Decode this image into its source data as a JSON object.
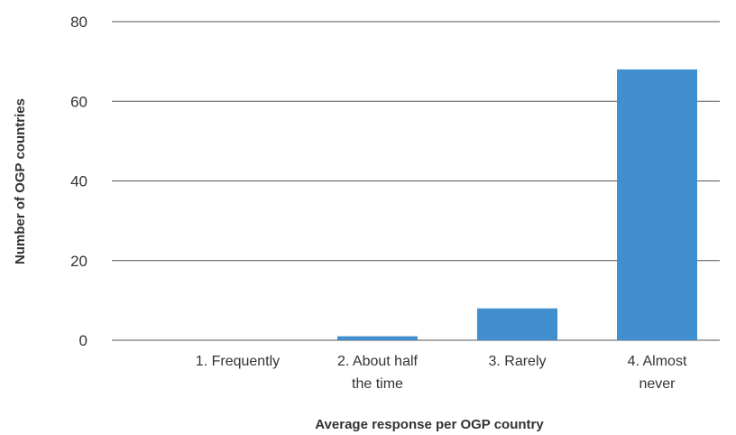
{
  "chart_data": {
    "type": "bar",
    "title": "",
    "xlabel": "Average response per OGP country",
    "ylabel": "Number of OGP countries",
    "categories": [
      [
        "1. Frequently"
      ],
      [
        "2. About half",
        "the time"
      ],
      [
        "3. Rarely"
      ],
      [
        "4. Almost",
        "never"
      ]
    ],
    "values": [
      0,
      1,
      8,
      68
    ],
    "ylim": [
      0,
      80
    ],
    "yticks": [
      0,
      20,
      40,
      60,
      80
    ],
    "grid": true,
    "legend": "none",
    "bar_color": "#418FCF"
  }
}
